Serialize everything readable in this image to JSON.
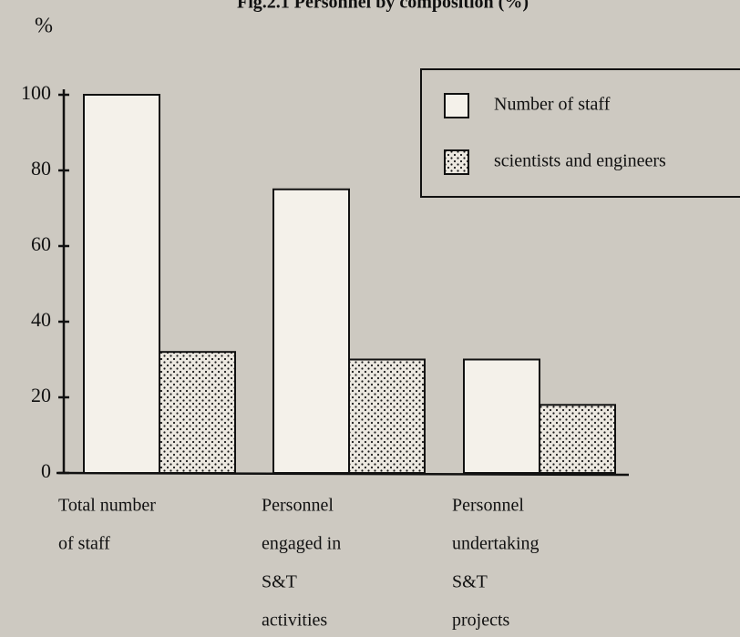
{
  "chart_data": {
    "type": "bar",
    "title": "Fig.2.1 Personnel by composition (%)",
    "y_label": "%",
    "categories": [
      [
        "Total number",
        "of staff"
      ],
      [
        "Personnel",
        "engaged in",
        "S&T",
        "activities"
      ],
      [
        "Personnel",
        "undertaking",
        "S&T",
        "projects"
      ]
    ],
    "series": [
      {
        "name": "Number of staff",
        "color": "#f4f1ea",
        "values": [
          100,
          75,
          30
        ]
      },
      {
        "name": "scientists and engineers",
        "color": "#1a1a1a",
        "pattern": "dots",
        "values": [
          32,
          30,
          18
        ]
      }
    ],
    "ylim": [
      0,
      100
    ],
    "yticks": [
      0,
      20,
      40,
      60,
      80,
      100
    ],
    "grid": false,
    "legend": "top-right"
  }
}
